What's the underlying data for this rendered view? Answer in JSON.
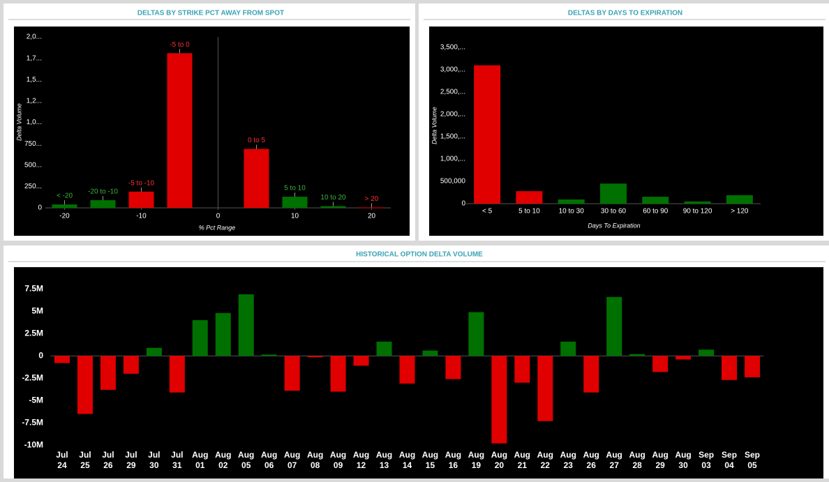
{
  "chart_data": [
    {
      "type": "bar",
      "title": "DELTAS BY STRIKE PCT AWAY FROM SPOT",
      "y_label": "Delta Volume",
      "x_label": "% Pct Range",
      "x": [
        -20,
        -15,
        -10,
        -5,
        5,
        10,
        15,
        20
      ],
      "labels": [
        "< -20",
        "-20 to -10",
        "-5 to -10",
        "-5 to 0",
        "0 to 5",
        "5 to 10",
        "10 to 20",
        "> 20"
      ],
      "values": [
        40,
        90,
        190,
        1810,
        690,
        130,
        20,
        5
      ],
      "colors": [
        "#007000",
        "#007000",
        "#e00000",
        "#e00000",
        "#e00000",
        "#007000",
        "#007000",
        "#e00000"
      ],
      "xlim": [
        -22.5,
        22.5
      ],
      "xticks": [
        -20,
        -10,
        0,
        10,
        20
      ],
      "ylim": [
        0,
        2000
      ],
      "yticks": [
        0,
        {
          "value": 250,
          "label": "250..."
        },
        {
          "value": 500,
          "label": "500..."
        },
        {
          "value": 750,
          "label": "750..."
        },
        {
          "value": 1000,
          "label": "1,0..."
        },
        {
          "value": 1250,
          "label": "1,2..."
        },
        {
          "value": 1500,
          "label": "1,5..."
        },
        {
          "value": 1750,
          "label": "1,7..."
        },
        {
          "value": 2000,
          "label": "2,0..."
        }
      ]
    },
    {
      "type": "bar",
      "title": "DELTAS BY DAYS TO EXPIRATION",
      "y_label": "Delta Volume",
      "x_label": "Days To Expiration",
      "categories": [
        "< 5",
        "5 to 10",
        "10 to 30",
        "30 to 60",
        "60 to 90",
        "90 to 120",
        "> 120"
      ],
      "values": [
        3100000,
        280000,
        95000,
        450000,
        155000,
        50000,
        190000
      ],
      "colors": [
        "#e00000",
        "#e00000",
        "#007000",
        "#007000",
        "#007000",
        "#007000",
        "#007000"
      ],
      "ylim": [
        0,
        3500000
      ],
      "yticks": [
        0,
        {
          "value": 500000,
          "label": "500,000"
        },
        {
          "value": 1000000,
          "label": "1,000,..."
        },
        {
          "value": 1500000,
          "label": "1,500,..."
        },
        {
          "value": 2000000,
          "label": "2,000,..."
        },
        {
          "value": 2500000,
          "label": "2,500,..."
        },
        {
          "value": 3000000,
          "label": "3,000,..."
        },
        {
          "value": 3500000,
          "label": "3,500,..."
        }
      ]
    },
    {
      "type": "bar",
      "title": "HISTORICAL OPTION DELTA VOLUME",
      "categories": [
        [
          "Jul",
          "24"
        ],
        [
          "Jul",
          "25"
        ],
        [
          "Jul",
          "26"
        ],
        [
          "Jul",
          "29"
        ],
        [
          "Jul",
          "30"
        ],
        [
          "Jul",
          "31"
        ],
        [
          "Aug",
          "01"
        ],
        [
          "Aug",
          "02"
        ],
        [
          "Aug",
          "05"
        ],
        [
          "Aug",
          "06"
        ],
        [
          "Aug",
          "07"
        ],
        [
          "Aug",
          "08"
        ],
        [
          "Aug",
          "09"
        ],
        [
          "Aug",
          "12"
        ],
        [
          "Aug",
          "13"
        ],
        [
          "Aug",
          "14"
        ],
        [
          "Aug",
          "15"
        ],
        [
          "Aug",
          "16"
        ],
        [
          "Aug",
          "19"
        ],
        [
          "Aug",
          "20"
        ],
        [
          "Aug",
          "21"
        ],
        [
          "Aug",
          "22"
        ],
        [
          "Aug",
          "23"
        ],
        [
          "Aug",
          "26"
        ],
        [
          "Aug",
          "27"
        ],
        [
          "Aug",
          "28"
        ],
        [
          "Aug",
          "29"
        ],
        [
          "Aug",
          "30"
        ],
        [
          "Sep",
          "03"
        ],
        [
          "Sep",
          "04"
        ],
        [
          "Sep",
          "05"
        ]
      ],
      "values": [
        -800000,
        -6500000,
        -3800000,
        -2000000,
        900000,
        -4100000,
        4000000,
        4800000,
        6900000,
        150000,
        -3900000,
        -150000,
        -4000000,
        -1100000,
        1600000,
        -3100000,
        600000,
        -2600000,
        4900000,
        -9800000,
        -3000000,
        -7300000,
        1600000,
        -4100000,
        6600000,
        200000,
        -1800000,
        -400000,
        700000,
        -2700000,
        -2400000
      ],
      "positive_color": "#007000",
      "negative_color": "#e00000",
      "ylim": [
        -10200000,
        9000000
      ],
      "yticks": [
        {
          "value": -10000000,
          "label": "-10M"
        },
        {
          "value": -7500000,
          "label": "-7.5M"
        },
        {
          "value": -5000000,
          "label": "-5M"
        },
        {
          "value": -2500000,
          "label": "-2.5M"
        },
        0,
        {
          "value": 2500000,
          "label": "2.5M"
        },
        {
          "value": 5000000,
          "label": "5M"
        },
        {
          "value": 7500000,
          "label": "7.5M"
        }
      ]
    }
  ]
}
